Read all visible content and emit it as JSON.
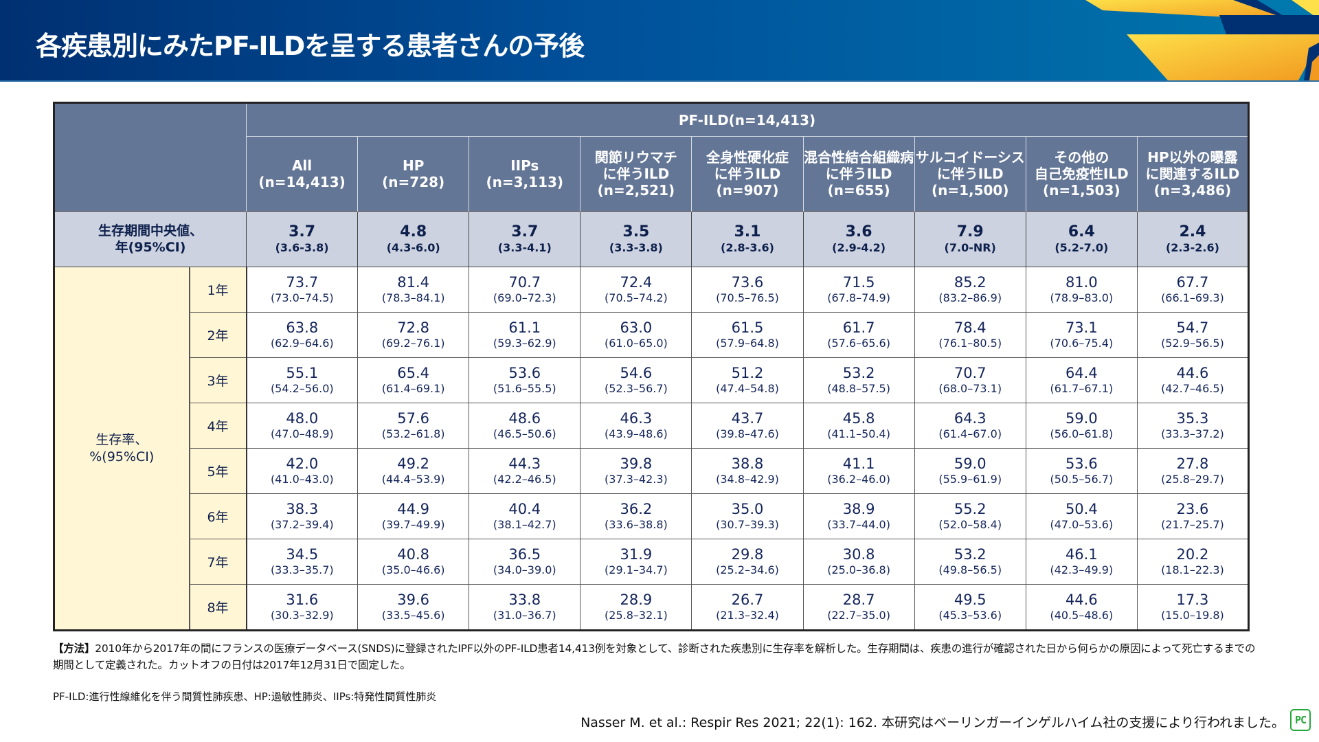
{
  "header": {
    "title": "各疾患別にみたPF-ILDを呈する患者さんの予後"
  },
  "colors": {
    "banner_dark": "#003072",
    "banner_light": "#0077ad",
    "header_bg": "#647696",
    "median_bg": "#ccd2df",
    "label_bg": "#fff6d5",
    "accent_yellow": "#f7b52a",
    "logo_green": "#27a83a"
  },
  "table": {
    "group_header": "PF-ILD(n=14,413)",
    "columns": [
      {
        "lines": [
          "All",
          "(n=14,413)"
        ]
      },
      {
        "lines": [
          "HP",
          "(n=728)"
        ]
      },
      {
        "lines": [
          "IIPs",
          "(n=3,113)"
        ]
      },
      {
        "lines": [
          "関節リウマチ",
          "に伴うILD",
          "(n=2,521)"
        ]
      },
      {
        "lines": [
          "全身性硬化症",
          "に伴うILD",
          "(n=907)"
        ]
      },
      {
        "lines": [
          "混合性結合組織病",
          "に伴うILD",
          "(n=655)"
        ]
      },
      {
        "lines": [
          "サルコイドーシス",
          "に伴うILD",
          "(n=1,500)"
        ]
      },
      {
        "lines": [
          "その他の",
          "自己免疫性ILD",
          "(n=1,503)"
        ]
      },
      {
        "lines": [
          "HP以外の曝露",
          "に関連するILD",
          "(n=3,486)"
        ]
      }
    ],
    "median": {
      "label_lines": [
        "生存期間中央値、",
        "年(95%CI)"
      ],
      "values": [
        {
          "v": "3.7",
          "ci": "(3.6-3.8)"
        },
        {
          "v": "4.8",
          "ci": "(4.3-6.0)"
        },
        {
          "v": "3.7",
          "ci": "(3.3-4.1)"
        },
        {
          "v": "3.5",
          "ci": "(3.3-3.8)"
        },
        {
          "v": "3.1",
          "ci": "(2.8-3.6)"
        },
        {
          "v": "3.6",
          "ci": "(2.9-4.2)"
        },
        {
          "v": "7.9",
          "ci": "(7.0-NR)"
        },
        {
          "v": "6.4",
          "ci": "(5.2-7.0)"
        },
        {
          "v": "2.4",
          "ci": "(2.3-2.6)"
        }
      ]
    },
    "rate_label_lines": [
      "生存率、",
      "%(95%CI)"
    ],
    "rows": [
      {
        "year": "1年",
        "cells": [
          {
            "v": "73.7",
            "ci": "(73.0–74.5)"
          },
          {
            "v": "81.4",
            "ci": "(78.3–84.1)"
          },
          {
            "v": "70.7",
            "ci": "(69.0–72.3)"
          },
          {
            "v": "72.4",
            "ci": "(70.5–74.2)"
          },
          {
            "v": "73.6",
            "ci": "(70.5–76.5)"
          },
          {
            "v": "71.5",
            "ci": "(67.8–74.9)"
          },
          {
            "v": "85.2",
            "ci": "(83.2–86.9)"
          },
          {
            "v": "81.0",
            "ci": "(78.9–83.0)"
          },
          {
            "v": "67.7",
            "ci": "(66.1–69.3)"
          }
        ]
      },
      {
        "year": "2年",
        "cells": [
          {
            "v": "63.8",
            "ci": "(62.9–64.6)"
          },
          {
            "v": "72.8",
            "ci": "(69.2–76.1)"
          },
          {
            "v": "61.1",
            "ci": "(59.3–62.9)"
          },
          {
            "v": "63.0",
            "ci": "(61.0–65.0)"
          },
          {
            "v": "61.5",
            "ci": "(57.9–64.8)"
          },
          {
            "v": "61.7",
            "ci": "(57.6–65.6)"
          },
          {
            "v": "78.4",
            "ci": "(76.1–80.5)"
          },
          {
            "v": "73.1",
            "ci": "(70.6–75.4)"
          },
          {
            "v": "54.7",
            "ci": "(52.9–56.5)"
          }
        ]
      },
      {
        "year": "3年",
        "cells": [
          {
            "v": "55.1",
            "ci": "(54.2–56.0)"
          },
          {
            "v": "65.4",
            "ci": "(61.4–69.1)"
          },
          {
            "v": "53.6",
            "ci": "(51.6–55.5)"
          },
          {
            "v": "54.6",
            "ci": "(52.3–56.7)"
          },
          {
            "v": "51.2",
            "ci": "(47.4–54.8)"
          },
          {
            "v": "53.2",
            "ci": "(48.8–57.5)"
          },
          {
            "v": "70.7",
            "ci": "(68.0–73.1)"
          },
          {
            "v": "64.4",
            "ci": "(61.7–67.1)"
          },
          {
            "v": "44.6",
            "ci": "(42.7–46.5)"
          }
        ]
      },
      {
        "year": "4年",
        "cells": [
          {
            "v": "48.0",
            "ci": "(47.0–48.9)"
          },
          {
            "v": "57.6",
            "ci": "(53.2–61.8)"
          },
          {
            "v": "48.6",
            "ci": "(46.5–50.6)"
          },
          {
            "v": "46.3",
            "ci": "(43.9–48.6)"
          },
          {
            "v": "43.7",
            "ci": "(39.8–47.6)"
          },
          {
            "v": "45.8",
            "ci": "(41.1–50.4)"
          },
          {
            "v": "64.3",
            "ci": "(61.4–67.0)"
          },
          {
            "v": "59.0",
            "ci": "(56.0–61.8)"
          },
          {
            "v": "35.3",
            "ci": "(33.3–37.2)"
          }
        ]
      },
      {
        "year": "5年",
        "cells": [
          {
            "v": "42.0",
            "ci": "(41.0–43.0)"
          },
          {
            "v": "49.2",
            "ci": "(44.4–53.9)"
          },
          {
            "v": "44.3",
            "ci": "(42.2–46.5)"
          },
          {
            "v": "39.8",
            "ci": "(37.3–42.3)"
          },
          {
            "v": "38.8",
            "ci": "(34.8–42.9)"
          },
          {
            "v": "41.1",
            "ci": "(36.2–46.0)"
          },
          {
            "v": "59.0",
            "ci": "(55.9–61.9)"
          },
          {
            "v": "53.6",
            "ci": "(50.5–56.7)"
          },
          {
            "v": "27.8",
            "ci": "(25.8–29.7)"
          }
        ]
      },
      {
        "year": "6年",
        "cells": [
          {
            "v": "38.3",
            "ci": "(37.2–39.4)"
          },
          {
            "v": "44.9",
            "ci": "(39.7–49.9)"
          },
          {
            "v": "40.4",
            "ci": "(38.1–42.7)"
          },
          {
            "v": "36.2",
            "ci": "(33.6–38.8)"
          },
          {
            "v": "35.0",
            "ci": "(30.7–39.3)"
          },
          {
            "v": "38.9",
            "ci": "(33.7–44.0)"
          },
          {
            "v": "55.2",
            "ci": "(52.0–58.4)"
          },
          {
            "v": "50.4",
            "ci": "(47.0–53.6)"
          },
          {
            "v": "23.6",
            "ci": "(21.7–25.7)"
          }
        ]
      },
      {
        "year": "7年",
        "cells": [
          {
            "v": "34.5",
            "ci": "(33.3–35.7)"
          },
          {
            "v": "40.8",
            "ci": "(35.0–46.6)"
          },
          {
            "v": "36.5",
            "ci": "(34.0–39.0)"
          },
          {
            "v": "31.9",
            "ci": "(29.1–34.7)"
          },
          {
            "v": "29.8",
            "ci": "(25.2–34.6)"
          },
          {
            "v": "30.8",
            "ci": "(25.0–36.8)"
          },
          {
            "v": "53.2",
            "ci": "(49.8–56.5)"
          },
          {
            "v": "46.1",
            "ci": "(42.3–49.9)"
          },
          {
            "v": "20.2",
            "ci": "(18.1–22.3)"
          }
        ]
      },
      {
        "year": "8年",
        "cells": [
          {
            "v": "31.6",
            "ci": "(30.3–32.9)"
          },
          {
            "v": "39.6",
            "ci": "(33.5–45.6)"
          },
          {
            "v": "33.8",
            "ci": "(31.0–36.7)"
          },
          {
            "v": "28.9",
            "ci": "(25.8–32.1)"
          },
          {
            "v": "26.7",
            "ci": "(21.3–32.4)"
          },
          {
            "v": "28.7",
            "ci": "(22.7–35.0)"
          },
          {
            "v": "49.5",
            "ci": "(45.3–53.6)"
          },
          {
            "v": "44.6",
            "ci": "(40.5–48.6)"
          },
          {
            "v": "17.3",
            "ci": "(15.0–19.8)"
          }
        ]
      }
    ]
  },
  "notes": {
    "method_label": "【方法】",
    "method_text": "2010年から2017年の間にフランスの医療データベース(SNDS)に登録されたIPF以外のPF-ILD患者14,413例を対象として、診断された疾患別に生存率を解析した。生存期間は、疾患の進行が確認された日から何らかの原因によって死亡するまでの期間として定義された。カットオフの日付は2017年12月31日で固定した。",
    "abbreviations": "PF-ILD:進行性線維化を伴う間質性肺疾患、HP:過敏性肺炎、IIPs:特発性間質性肺炎",
    "reference": "Nasser M. et al.: Respir Res 2021; 22(1): 162. 本研究はベーリンガーインゲルハイム社の支援により行われました。",
    "logo_text": "PC"
  }
}
